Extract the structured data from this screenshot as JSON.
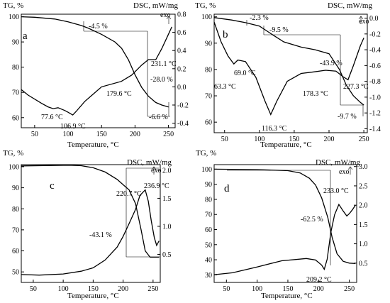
{
  "chart_data": [
    {
      "type": "line",
      "panel_label": "a",
      "xlabel": "Temperature, °C",
      "ylabel_left": "TG, %",
      "ylabel_right": "DSC, mW/mg",
      "exo_label": "exo",
      "xlim": [
        30,
        260
      ],
      "x_ticks": [
        50,
        100,
        150,
        200,
        250
      ],
      "ylim_left": [
        56,
        101
      ],
      "y_ticks_left": [
        60,
        70,
        80,
        90,
        100
      ],
      "ylim_right": [
        -0.45,
        0.8
      ],
      "y_ticks_right": [
        -0.4,
        -0.2,
        0.0,
        0.2,
        0.4,
        0.6,
        0.8
      ],
      "series": [
        {
          "axis": "left",
          "x": [
            30,
            50,
            80,
            100,
            120,
            130,
            150,
            170,
            180,
            190,
            200,
            210,
            220,
            231,
            240,
            250
          ],
          "y": [
            100,
            99.8,
            99.1,
            98.0,
            96.5,
            95.5,
            93.0,
            90.0,
            87.5,
            83.0,
            77.0,
            72.0,
            68.5,
            66.0,
            65.0,
            64.2
          ]
        },
        {
          "axis": "right",
          "x": [
            30,
            40,
            60,
            70,
            77.6,
            85,
            95,
            100,
            106.9,
            112,
            125,
            150,
            179.6,
            195,
            210,
            220,
            231.1,
            240,
            250,
            255
          ],
          "y": [
            -0.03,
            -0.09,
            -0.18,
            -0.22,
            -0.24,
            -0.23,
            -0.26,
            -0.28,
            -0.31,
            -0.27,
            -0.16,
            0.0,
            0.06,
            0.13,
            0.24,
            0.3,
            0.3,
            0.42,
            0.58,
            0.66
          ]
        }
      ],
      "annotations": [
        "-4.5 %",
        "231.1 °C",
        "-28.0 %",
        "179.6 °C",
        "-6.6 %",
        "77.6 °C",
        "106.9 °C"
      ]
    },
    {
      "type": "line",
      "panel_label": "b",
      "xlabel": "Temperature, °C",
      "ylabel_left": "TG, %",
      "ylabel_right": "DSC, mW/mg",
      "exo_label": "exo",
      "xlim": [
        35,
        255
      ],
      "x_ticks": [
        50,
        100,
        150,
        200,
        250
      ],
      "ylim_left": [
        56,
        101
      ],
      "y_ticks_left": [
        60,
        70,
        80,
        90,
        100
      ],
      "ylim_right": [
        -1.45,
        0.05
      ],
      "y_ticks_right": [
        -1.4,
        -1.2,
        -1.0,
        -0.8,
        -0.6,
        -0.4,
        -0.2,
        0.0
      ],
      "series": [
        {
          "axis": "left",
          "x": [
            35,
            60,
            80,
            100,
            120,
            135,
            160,
            180,
            200,
            215,
            225,
            235,
            245,
            250
          ],
          "y": [
            99.7,
            98.8,
            97.8,
            96.5,
            93.0,
            90.5,
            88.5,
            87.5,
            86.0,
            80.0,
            74.0,
            70.0,
            67.5,
            66.5
          ]
        },
        {
          "axis": "right",
          "x": [
            35,
            45,
            55,
            63.3,
            69.0,
            80,
            95,
            108,
            116.3,
            125,
            140,
            160,
            178.3,
            195,
            210,
            220,
            227.3,
            235,
            245,
            250
          ],
          "y": [
            -0.05,
            -0.3,
            -0.48,
            -0.58,
            -0.53,
            -0.55,
            -0.75,
            -1.05,
            -1.22,
            -1.05,
            -0.8,
            -0.7,
            -0.68,
            -0.66,
            -0.67,
            -0.74,
            -0.78,
            -0.6,
            -0.35,
            -0.25
          ]
        }
      ],
      "annotations": [
        "-2.3 %",
        "-9.5 %",
        "-43.9 %",
        "-9.7 %",
        "69.0 °C",
        "63.3 °C",
        "116.3 °C",
        "178.3 °C",
        "227.3 °C"
      ]
    },
    {
      "type": "line",
      "panel_label": "c",
      "xlabel": "Temperature, °C",
      "ylabel_left": "TG, %",
      "ylabel_right": "DSC, mW/mg",
      "exo_label": "exo",
      "xlim": [
        30,
        262
      ],
      "x_ticks": [
        50,
        100,
        150,
        200,
        250
      ],
      "ylim_left": [
        45,
        101
      ],
      "y_ticks_left": [
        50,
        60,
        70,
        80,
        90,
        100
      ],
      "ylim_right": [
        0.0,
        2.1
      ],
      "y_ticks_right": [
        0.5,
        1.0,
        1.5,
        2.0
      ],
      "series": [
        {
          "axis": "left",
          "x": [
            30,
            80,
            110,
            130,
            150,
            170,
            190,
            200,
            210,
            220.7,
            230,
            236.9,
            245,
            250,
            255,
            260
          ],
          "y": [
            100.4,
            100.6,
            100.7,
            100.5,
            99.5,
            97.5,
            94.0,
            91.5,
            89.0,
            82.5,
            70.0,
            60.0,
            57.0,
            57.0,
            57.0,
            57.0
          ]
        },
        {
          "axis": "right",
          "x": [
            30,
            60,
            100,
            130,
            150,
            170,
            190,
            200,
            210,
            220.7,
            228,
            236.9,
            242,
            247,
            252,
            256,
            260
          ],
          "y": [
            0.14,
            0.13,
            0.15,
            0.2,
            0.26,
            0.4,
            0.63,
            0.82,
            1.05,
            1.3,
            1.55,
            1.65,
            1.45,
            1.1,
            0.8,
            0.66,
            0.74
          ]
        }
      ],
      "annotations": [
        "220.7 °C",
        "236.9 °C",
        "-43.1 %"
      ]
    },
    {
      "type": "line",
      "panel_label": "d",
      "xlabel": "Temperature, °C",
      "ylabel_left": "TG, %",
      "ylabel_right": "DSC, mW/mg",
      "exo_label": "exo",
      "xlim": [
        30,
        262
      ],
      "x_ticks": [
        50,
        100,
        150,
        200,
        250
      ],
      "ylim_left": [
        25,
        103
      ],
      "y_ticks_left": [
        30,
        40,
        50,
        60,
        70,
        80,
        90,
        100
      ],
      "ylim_right": [
        0.0,
        3.05
      ],
      "y_ticks_right": [
        0.5,
        1.0,
        1.5,
        2.0,
        2.5,
        3.0
      ],
      "series": [
        {
          "axis": "left",
          "x": [
            30,
            100,
            150,
            170,
            185,
            195,
            205,
            215,
            222,
            230,
            240,
            250,
            260
          ],
          "y": [
            100,
            99.7,
            99.0,
            97.5,
            94.0,
            89.5,
            81.0,
            68.0,
            55.0,
            44.0,
            39.0,
            37.8,
            37.5
          ]
        },
        {
          "axis": "right",
          "x": [
            30,
            60,
            100,
            140,
            180,
            195,
            205,
            209.2,
            214,
            220,
            226,
            233.0,
            240,
            246,
            250,
            255,
            260
          ],
          "y": [
            0.2,
            0.25,
            0.4,
            0.56,
            0.62,
            0.58,
            0.45,
            0.34,
            0.6,
            1.3,
            1.75,
            2.02,
            1.85,
            1.72,
            1.78,
            1.88,
            2.0
          ]
        }
      ],
      "annotations": [
        "233.0 °C",
        "-62.5 %",
        "209.2 °C"
      ]
    }
  ]
}
